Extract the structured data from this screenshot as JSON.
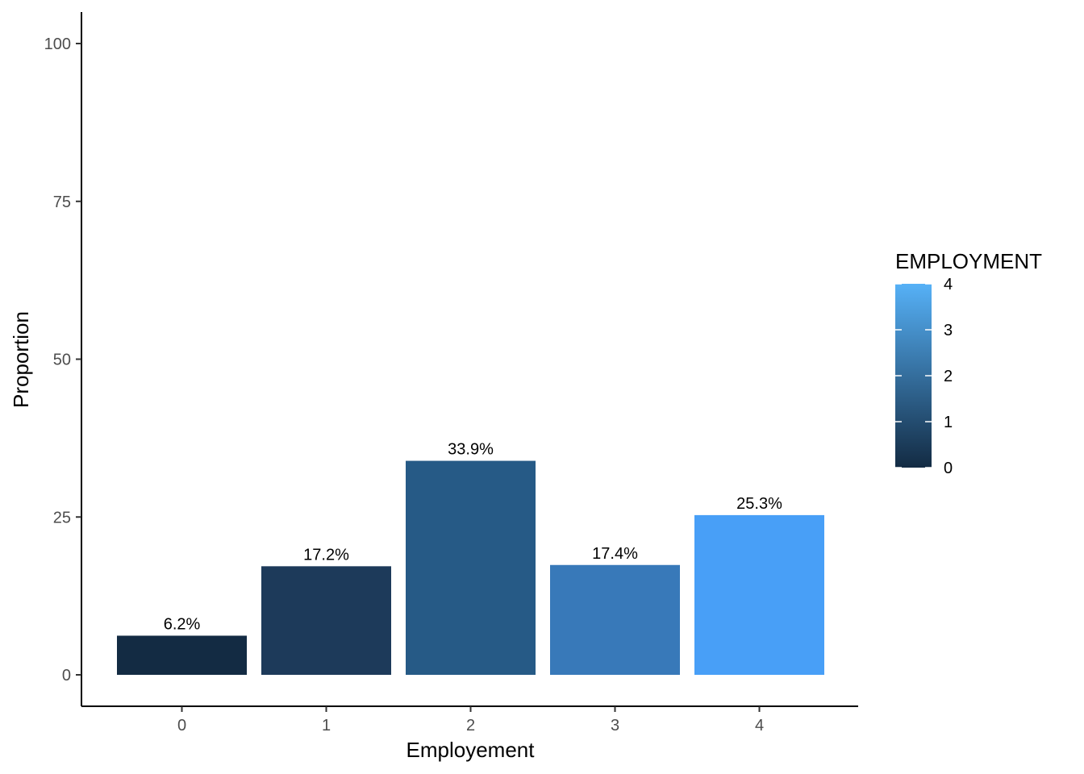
{
  "chart_data": {
    "type": "bar",
    "title": "",
    "xlabel": "Employement",
    "ylabel": "Proportion",
    "categories": [
      "0",
      "1",
      "2",
      "3",
      "4"
    ],
    "values": [
      6.2,
      17.2,
      33.9,
      17.4,
      25.3
    ],
    "labels": [
      "6.2%",
      "17.2%",
      "33.9%",
      "17.4%",
      "25.3%"
    ],
    "ylim": [
      0,
      100
    ],
    "yticks": [
      0,
      25,
      50,
      75,
      100
    ],
    "grid": false,
    "legend": {
      "title": "EMPLOYMENT",
      "placement": "right",
      "type": "colorbar",
      "range": [
        0,
        4
      ],
      "ticks": [
        "0",
        "1",
        "2",
        "3",
        "4"
      ],
      "color_low": "#132B43",
      "color_high": "#56B1F7"
    },
    "bar_colors": [
      "#132B43",
      "#1D3A5A",
      "#265A86",
      "#3879B9",
      "#489FF7"
    ]
  }
}
